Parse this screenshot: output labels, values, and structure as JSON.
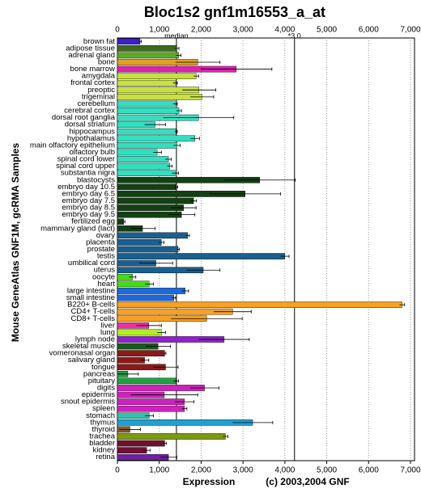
{
  "chart_data": {
    "type": "hbar_error",
    "title": "Bloc1s2 gnf1m16553_a_at",
    "xlabel": "Expression",
    "ylabel": "Mouse GeneAtlas GNF1M, gcRMA Samples",
    "credit": "(c) 2003,2004 GNF",
    "categories": [
      "brown fat",
      "adipose tissue",
      "adrenal gland",
      "bone",
      "bone marrow",
      "amygdala",
      "frontal cortex",
      "preoptic",
      "trigeminal",
      "cerebellum",
      "cerebral cortex",
      "dorsal root ganglia",
      "dorsal striatum",
      "hippocampus",
      "hypothalamus",
      "main olfactory epithelium",
      "olfactory bulb",
      "spinal cord lower",
      "spinal cord upper",
      "substantia nigra",
      "blastocysts",
      "embryo day 10.5",
      "embryo day 6.5",
      "embryo day 7.5",
      "embryo day 8.5",
      "embryo day 9.5",
      "fertilized egg",
      "mammary gland (lact)",
      "ovary",
      "placenta",
      "prostate",
      "testis",
      "umbilical cord",
      "uterus",
      "oocyte",
      "heart",
      "large intestine",
      "small intestine",
      "B220+ B-cells",
      "CD4+ T-cells",
      "CD8+ T-cells",
      "liver",
      "lung",
      "lymph node",
      "skeletal muscle",
      "vomeronasal organ",
      "salivary gland",
      "tongue",
      "pancreas",
      "pituitary",
      "digits",
      "epidermis",
      "snout epidermis",
      "spleen",
      "stomach",
      "thymus",
      "thyroid",
      "trachea",
      "bladder",
      "kidney",
      "retina"
    ],
    "values": [
      540,
      1420,
      1460,
      1920,
      2840,
      1880,
      1380,
      1950,
      2020,
      1380,
      1470,
      1940,
      900,
      1400,
      1850,
      1420,
      950,
      1220,
      1250,
      1380,
      3400,
      1400,
      3050,
      1820,
      1580,
      1530,
      150,
      600,
      1680,
      1050,
      1450,
      4000,
      920,
      2050,
      360,
      760,
      1620,
      1350,
      6800,
      2750,
      2130,
      750,
      1050,
      2550,
      970,
      1130,
      650,
      1150,
      250,
      1400,
      2080,
      1120,
      1600,
      1600,
      760,
      3230,
      300,
      2580,
      1130,
      700,
      1220
    ],
    "errors": [
      30,
      50,
      60,
      530,
      850,
      60,
      50,
      400,
      280,
      50,
      60,
      840,
      250,
      30,
      110,
      80,
      100,
      70,
      60,
      80,
      850,
      40,
      850,
      70,
      300,
      320,
      30,
      300,
      40,
      60,
      30,
      100,
      400,
      400,
      80,
      100,
      80,
      40,
      60,
      450,
      850,
      300,
      100,
      600,
      300,
      30,
      100,
      300,
      250,
      60,
      350,
      800,
      230,
      60,
      100,
      480,
      250,
      60,
      40,
      80,
      200
    ],
    "colors": [
      "#3a1fd6",
      "#3d6b1e",
      "#5aaa1e",
      "#e0a020",
      "#e020b0",
      "#c8e040",
      "#c8e040",
      "#c8e040",
      "#c8e040",
      "#30e0c0",
      "#30e0c0",
      "#30e0c0",
      "#30e0c0",
      "#30e0c0",
      "#30e0c0",
      "#30e0c0",
      "#30e0c0",
      "#30e0c0",
      "#30e0c0",
      "#30e0c0",
      "#144014",
      "#144014",
      "#144014",
      "#144014",
      "#144014",
      "#144014",
      "#144014",
      "#144014",
      "#1a5f8f",
      "#1a5f8f",
      "#1a5f8f",
      "#1a5f8f",
      "#1a5f8f",
      "#1a5f8f",
      "#44dd10",
      "#44dd10",
      "#1a6ae0",
      "#1a6ae0",
      "#f8a020",
      "#f8a020",
      "#f8a020",
      "#f030a0",
      "#b0f020",
      "#9020d0",
      "#1a5a1a",
      "#8a1a1a",
      "#8a1a1a",
      "#8a1a1a",
      "#20a040",
      "#20a040",
      "#d020c0",
      "#d020c0",
      "#d020c0",
      "#d020c0",
      "#30c0b0",
      "#20a0d0",
      "#8a5a20",
      "#7a9a10",
      "#701030",
      "#701030",
      "#7020a0"
    ],
    "xlim": [
      0,
      7000
    ],
    "xticks": [
      0,
      {
        "value": 1000,
        "label": "1,000"
      },
      {
        "value": 2000,
        "label": "2,000"
      },
      {
        "value": 3000,
        "label": "3,000"
      },
      {
        "value": 4000,
        "label": "4,000"
      },
      {
        "value": 5000,
        "label": "5,000"
      },
      {
        "value": 6000,
        "label": "6,000"
      },
      {
        "value": 7000,
        "label": "7,000"
      }
    ],
    "reference_lines": [
      {
        "label": "median",
        "value": 1410
      },
      {
        "label": "*3.0",
        "value": 4230
      }
    ],
    "grid": true
  }
}
